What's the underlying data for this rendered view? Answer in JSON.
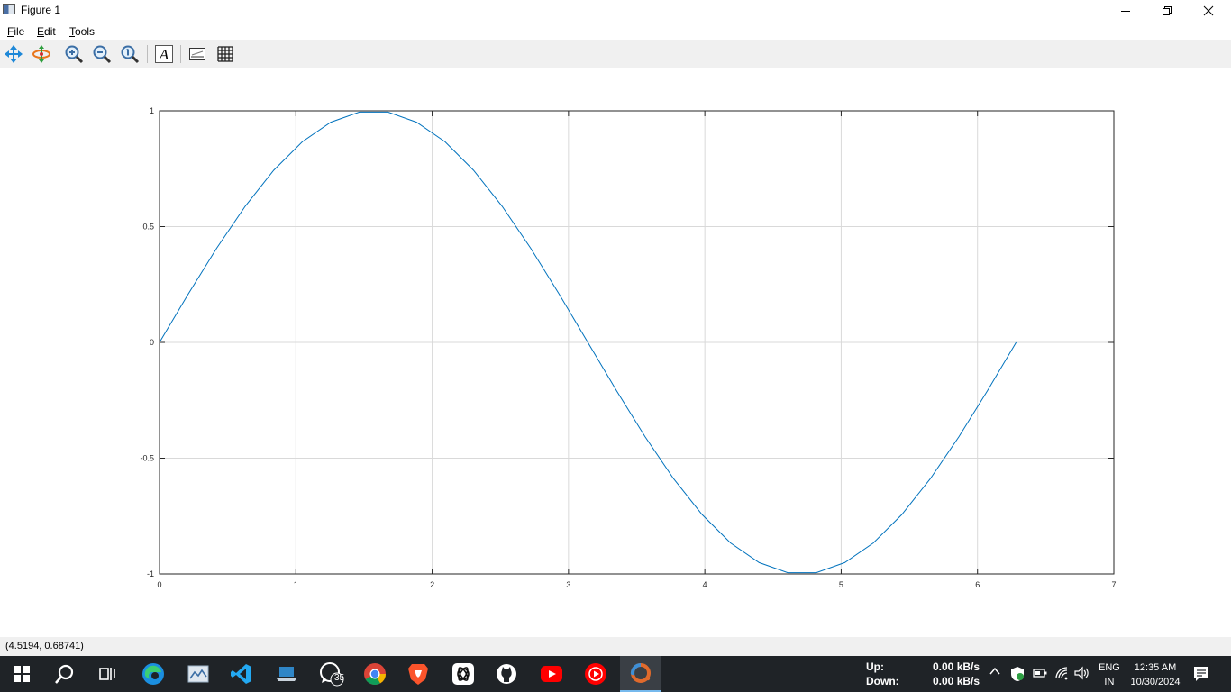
{
  "window": {
    "title": "Figure 1"
  },
  "menu": {
    "items": [
      {
        "label_u": "F",
        "label_rest": "ile"
      },
      {
        "label_u": "E",
        "label_rest": "dit"
      },
      {
        "label_u": "T",
        "label_rest": "ools"
      }
    ]
  },
  "toolbar": {
    "tools": [
      "pan-icon",
      "rotate-icon",
      "zoom-in-icon",
      "zoom-out-icon",
      "zoom-reset-icon",
      "insert-text-icon",
      "toggle-axes-icon",
      "toggle-grid-icon"
    ]
  },
  "chart_data": {
    "type": "line",
    "title": "",
    "xlabel": "",
    "ylabel": "",
    "xlim": [
      0,
      7
    ],
    "ylim": [
      -1,
      1
    ],
    "xticks": [
      "0",
      "1",
      "2",
      "3",
      "4",
      "5",
      "6",
      "7"
    ],
    "yticks": [
      "1",
      "0.5",
      "0",
      "-0.5",
      "-1"
    ],
    "grid": true,
    "series": [
      {
        "color": "#0072bd",
        "x": [
          0,
          0.2094,
          0.4189,
          0.6283,
          0.8378,
          1.0472,
          1.2566,
          1.4661,
          1.6755,
          1.885,
          2.0944,
          2.3038,
          2.5133,
          2.7227,
          2.9322,
          3.1416,
          3.351,
          3.5605,
          3.7699,
          3.9794,
          4.1888,
          4.3982,
          4.6077,
          4.8171,
          5.0265,
          5.236,
          5.4454,
          5.6549,
          5.8643,
          6.0737,
          6.2832
        ],
        "y": [
          0,
          0.2079,
          0.4067,
          0.5878,
          0.7431,
          0.866,
          0.9511,
          0.9945,
          0.9945,
          0.9511,
          0.866,
          0.7431,
          0.5878,
          0.4067,
          0.2079,
          0,
          -0.2079,
          -0.4067,
          -0.5878,
          -0.7431,
          -0.866,
          -0.9511,
          -0.9945,
          -0.9945,
          -0.9511,
          -0.866,
          -0.7431,
          -0.5878,
          -0.4067,
          -0.2079,
          0
        ]
      }
    ]
  },
  "status": {
    "coords": "(4.5194, 0.68741)"
  },
  "taskbar": {
    "icons": [
      "windows-start-icon",
      "search-icon",
      "task-view-icon",
      "edge-icon",
      "photos-icon",
      "vscode-icon",
      "laptop-app-icon",
      "whatsapp-icon",
      "chrome-icon",
      "brave-icon",
      "chatgpt-icon",
      "github-icon",
      "youtube-icon",
      "youtube-music-icon",
      "octave-icon"
    ],
    "whatsapp_badge": "35",
    "net": {
      "up_label": "Up:",
      "down_label": "Down:",
      "up_value": "0.00 kB/s",
      "down_value": "0.00 kB/s"
    },
    "lang_top": "ENG",
    "lang_bottom": "IN",
    "time": "12:35 AM",
    "date": "10/30/2024"
  }
}
